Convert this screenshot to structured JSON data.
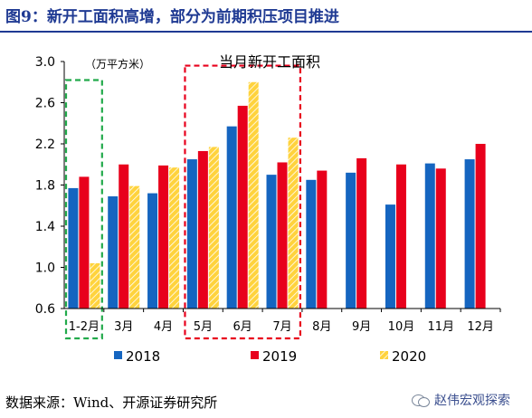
{
  "figure": {
    "title": "图9：新开工面积高增，部分为前期积压项目推进",
    "source": "数据来源：Wind、开源证券研究所",
    "watermark": "赵伟宏观探索"
  },
  "chart_data": {
    "type": "bar",
    "unit_label": "（万平方米）",
    "annotation": "当月新开工面积",
    "categories": [
      "1-2月",
      "3月",
      "4月",
      "5月",
      "6月",
      "7月",
      "8月",
      "9月",
      "10月",
      "11月",
      "12月"
    ],
    "ylim": [
      0.6,
      3.0
    ],
    "yticks": [
      0.6,
      1.0,
      1.4,
      1.8,
      2.2,
      2.6,
      3.0
    ],
    "ytick_labels": [
      "0.6",
      "1.0",
      "1.4",
      "1.8",
      "2.2",
      "2.6",
      "3.0"
    ],
    "legend_position": "bottom",
    "series": [
      {
        "name": "2018",
        "color": "#1565c0",
        "pattern": "solid",
        "values": [
          1.77,
          1.69,
          1.72,
          2.05,
          2.37,
          1.9,
          1.85,
          1.92,
          1.61,
          2.01,
          2.05
        ]
      },
      {
        "name": "2019",
        "color": "#e8001c",
        "pattern": "solid",
        "values": [
          1.88,
          2.0,
          1.99,
          2.13,
          2.57,
          2.02,
          1.94,
          2.06,
          2.0,
          1.96,
          2.2
        ]
      },
      {
        "name": "2020",
        "color": "#ffd33d",
        "pattern": "hatched",
        "values": [
          1.04,
          1.79,
          1.97,
          2.17,
          2.8,
          2.26,
          null,
          null,
          null,
          null,
          null
        ]
      }
    ],
    "highlights": [
      {
        "categories": [
          "1-2月"
        ],
        "color": "#22aa4b",
        "style": "dashed"
      },
      {
        "categories": [
          "5月",
          "6月",
          "7月"
        ],
        "color": "#e8001c",
        "style": "dashed"
      }
    ]
  }
}
